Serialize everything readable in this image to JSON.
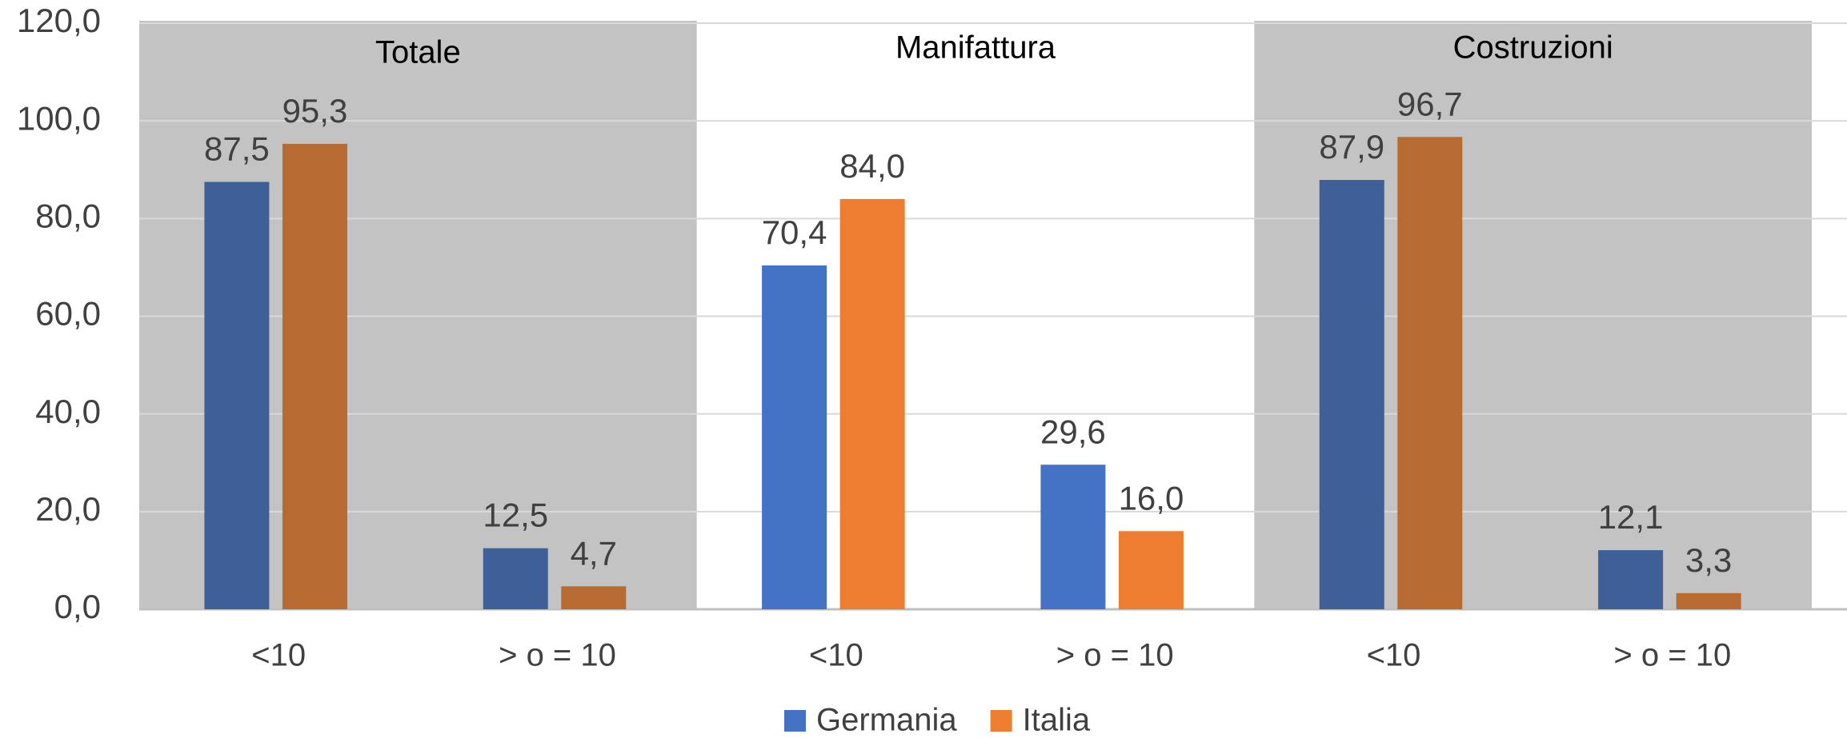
{
  "chart_data": {
    "type": "bar",
    "categories": [
      "<10",
      "> o = 10",
      "<10",
      "> o = 10",
      "<10",
      "> o = 10"
    ],
    "groups": [
      {
        "name": "Totale",
        "shaded": true
      },
      {
        "name": "Manifattura",
        "shaded": false
      },
      {
        "name": "Costruzioni",
        "shaded": true
      }
    ],
    "shade_color": "#c3c3c3",
    "series": [
      {
        "name": "Germania",
        "color": "#4472c4",
        "shaded_color": "#3f5f98",
        "values": [
          87.5,
          12.5,
          70.4,
          29.6,
          87.9,
          12.1
        ],
        "value_labels": [
          "87,5",
          "12,5",
          "70,4",
          "29,6",
          "87,9",
          "12,1"
        ]
      },
      {
        "name": "Italia",
        "color": "#ed7d31",
        "shaded_color": "#b86a33",
        "values": [
          95.3,
          4.7,
          84.0,
          16.0,
          96.7,
          3.3
        ],
        "value_labels": [
          "95,3",
          "4,7",
          "84,0",
          "16,0",
          "96,7",
          "3,3"
        ]
      }
    ],
    "ylim": [
      0,
      120
    ],
    "yticks": [
      {
        "value": 0,
        "label": "0,0"
      },
      {
        "value": 20,
        "label": "20,0"
      },
      {
        "value": 40,
        "label": "40,0"
      },
      {
        "value": 60,
        "label": "60,0"
      },
      {
        "value": 80,
        "label": "80,0"
      },
      {
        "value": 100,
        "label": "100,0"
      },
      {
        "value": 120,
        "label": "120,0"
      }
    ],
    "grid": true,
    "legend": "bottom"
  }
}
